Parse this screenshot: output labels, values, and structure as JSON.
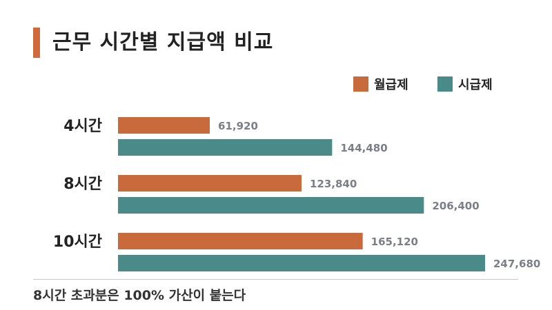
{
  "title": "근무 시간별 지급액 비교",
  "footnote": "8시간 초과분은 100% 가산이 붙는다",
  "colors": {
    "accent": "#cf6a3a",
    "monthly": "#c96a3c",
    "hourly": "#4a8a88",
    "value_label": "#7a7f87",
    "divider": "#c9c7b8"
  },
  "chart_data": {
    "type": "bar",
    "orientation": "horizontal",
    "title": "근무 시간별 지급액 비교",
    "categories": [
      "4시간",
      "8시간",
      "10시간"
    ],
    "series": [
      {
        "name": "월급제",
        "values": [
          61920,
          123840,
          165120
        ],
        "labels": [
          "61,920",
          "123,840",
          "165,120"
        ]
      },
      {
        "name": "시급제",
        "values": [
          144480,
          206400,
          247680
        ],
        "labels": [
          "144,480",
          "206,400",
          "247,680"
        ]
      }
    ],
    "legend": "top-right",
    "grid": false
  }
}
